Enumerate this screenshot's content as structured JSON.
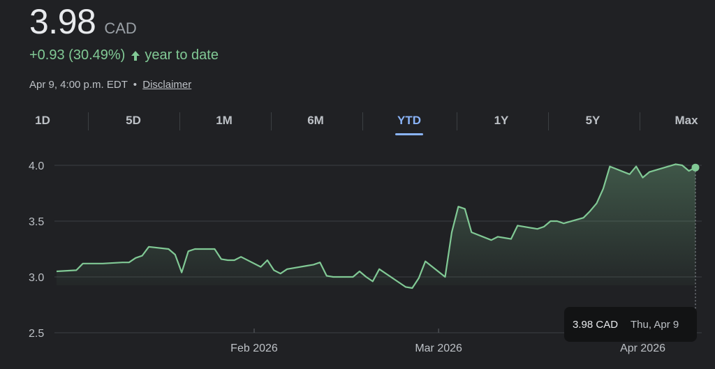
{
  "quote": {
    "price": "3.98",
    "currency": "CAD",
    "change": "+0.93 (30.49%)",
    "period": "year to date",
    "timestamp": "Apr 9, 4:00 p.m. EDT",
    "separator": "•",
    "disclaimer": "Disclaimer"
  },
  "tabs": [
    {
      "label": "1D",
      "active": false
    },
    {
      "label": "5D",
      "active": false
    },
    {
      "label": "1M",
      "active": false
    },
    {
      "label": "6M",
      "active": false
    },
    {
      "label": "YTD",
      "active": true
    },
    {
      "label": "1Y",
      "active": false
    },
    {
      "label": "5Y",
      "active": false
    },
    {
      "label": "Max",
      "active": false
    }
  ],
  "tooltip": {
    "price": "3.98 CAD",
    "date": "Thu, Apr 9"
  },
  "colors": {
    "line": "#81c995",
    "positive_text": "#81c995",
    "active_tab": "#8ab4f8",
    "background": "#202124"
  },
  "chart_data": {
    "type": "area",
    "ylim": [
      2.5,
      4.0
    ],
    "yticks": [
      {
        "value": 4.0,
        "label": "4.0"
      },
      {
        "value": 3.5,
        "label": "3.5"
      },
      {
        "value": 3.0,
        "label": "3.0"
      },
      {
        "value": 2.5,
        "label": "2.5"
      }
    ],
    "xticks": [
      {
        "date": "2026-02-01",
        "label": "Feb 2026"
      },
      {
        "date": "2026-03-01",
        "label": "Mar 2026"
      },
      {
        "date": "2026-04-01",
        "label": "Apr 2026"
      }
    ],
    "x_range": [
      "2026-01-02",
      "2026-04-09"
    ],
    "baseline": 3.05,
    "series": [
      {
        "points": [
          [
            "2026-01-02",
            3.05
          ],
          [
            "2026-01-05",
            3.06
          ],
          [
            "2026-01-06",
            3.12
          ],
          [
            "2026-01-07",
            3.12
          ],
          [
            "2026-01-08",
            3.12
          ],
          [
            "2026-01-09",
            3.12
          ],
          [
            "2026-01-12",
            3.13
          ],
          [
            "2026-01-13",
            3.13
          ],
          [
            "2026-01-14",
            3.17
          ],
          [
            "2026-01-15",
            3.19
          ],
          [
            "2026-01-16",
            3.27
          ],
          [
            "2026-01-19",
            3.25
          ],
          [
            "2026-01-20",
            3.2
          ],
          [
            "2026-01-21",
            3.04
          ],
          [
            "2026-01-22",
            3.23
          ],
          [
            "2026-01-23",
            3.25
          ],
          [
            "2026-01-26",
            3.25
          ],
          [
            "2026-01-27",
            3.16
          ],
          [
            "2026-01-28",
            3.15
          ],
          [
            "2026-01-29",
            3.15
          ],
          [
            "2026-01-30",
            3.18
          ],
          [
            "2026-02-02",
            3.09
          ],
          [
            "2026-02-03",
            3.15
          ],
          [
            "2026-02-04",
            3.06
          ],
          [
            "2026-02-05",
            3.03
          ],
          [
            "2026-02-06",
            3.07
          ],
          [
            "2026-02-09",
            3.1
          ],
          [
            "2026-02-10",
            3.11
          ],
          [
            "2026-02-11",
            3.13
          ],
          [
            "2026-02-12",
            3.01
          ],
          [
            "2026-02-13",
            3.0
          ],
          [
            "2026-02-16",
            3.0
          ],
          [
            "2026-02-17",
            3.05
          ],
          [
            "2026-02-18",
            3.0
          ],
          [
            "2026-02-19",
            2.96
          ],
          [
            "2026-02-20",
            3.07
          ],
          [
            "2026-02-23",
            2.95
          ],
          [
            "2026-02-24",
            2.91
          ],
          [
            "2026-02-25",
            2.9
          ],
          [
            "2026-02-26",
            2.99
          ],
          [
            "2026-02-27",
            3.14
          ],
          [
            "2026-03-02",
            3.0
          ],
          [
            "2026-03-03",
            3.4
          ],
          [
            "2026-03-04",
            3.63
          ],
          [
            "2026-03-05",
            3.61
          ],
          [
            "2026-03-06",
            3.4
          ],
          [
            "2026-03-09",
            3.33
          ],
          [
            "2026-03-10",
            3.36
          ],
          [
            "2026-03-11",
            3.35
          ],
          [
            "2026-03-12",
            3.34
          ],
          [
            "2026-03-13",
            3.46
          ],
          [
            "2026-03-16",
            3.43
          ],
          [
            "2026-03-17",
            3.45
          ],
          [
            "2026-03-18",
            3.5
          ],
          [
            "2026-03-19",
            3.5
          ],
          [
            "2026-03-20",
            3.48
          ],
          [
            "2026-03-23",
            3.53
          ],
          [
            "2026-03-24",
            3.59
          ],
          [
            "2026-03-25",
            3.66
          ],
          [
            "2026-03-26",
            3.79
          ],
          [
            "2026-03-27",
            3.99
          ],
          [
            "2026-03-30",
            3.92
          ],
          [
            "2026-03-31",
            3.99
          ],
          [
            "2026-04-01",
            3.89
          ],
          [
            "2026-04-02",
            3.94
          ],
          [
            "2026-04-06",
            4.01
          ],
          [
            "2026-04-07",
            4.0
          ],
          [
            "2026-04-08",
            3.95
          ],
          [
            "2026-04-09",
            3.98
          ]
        ]
      }
    ]
  }
}
